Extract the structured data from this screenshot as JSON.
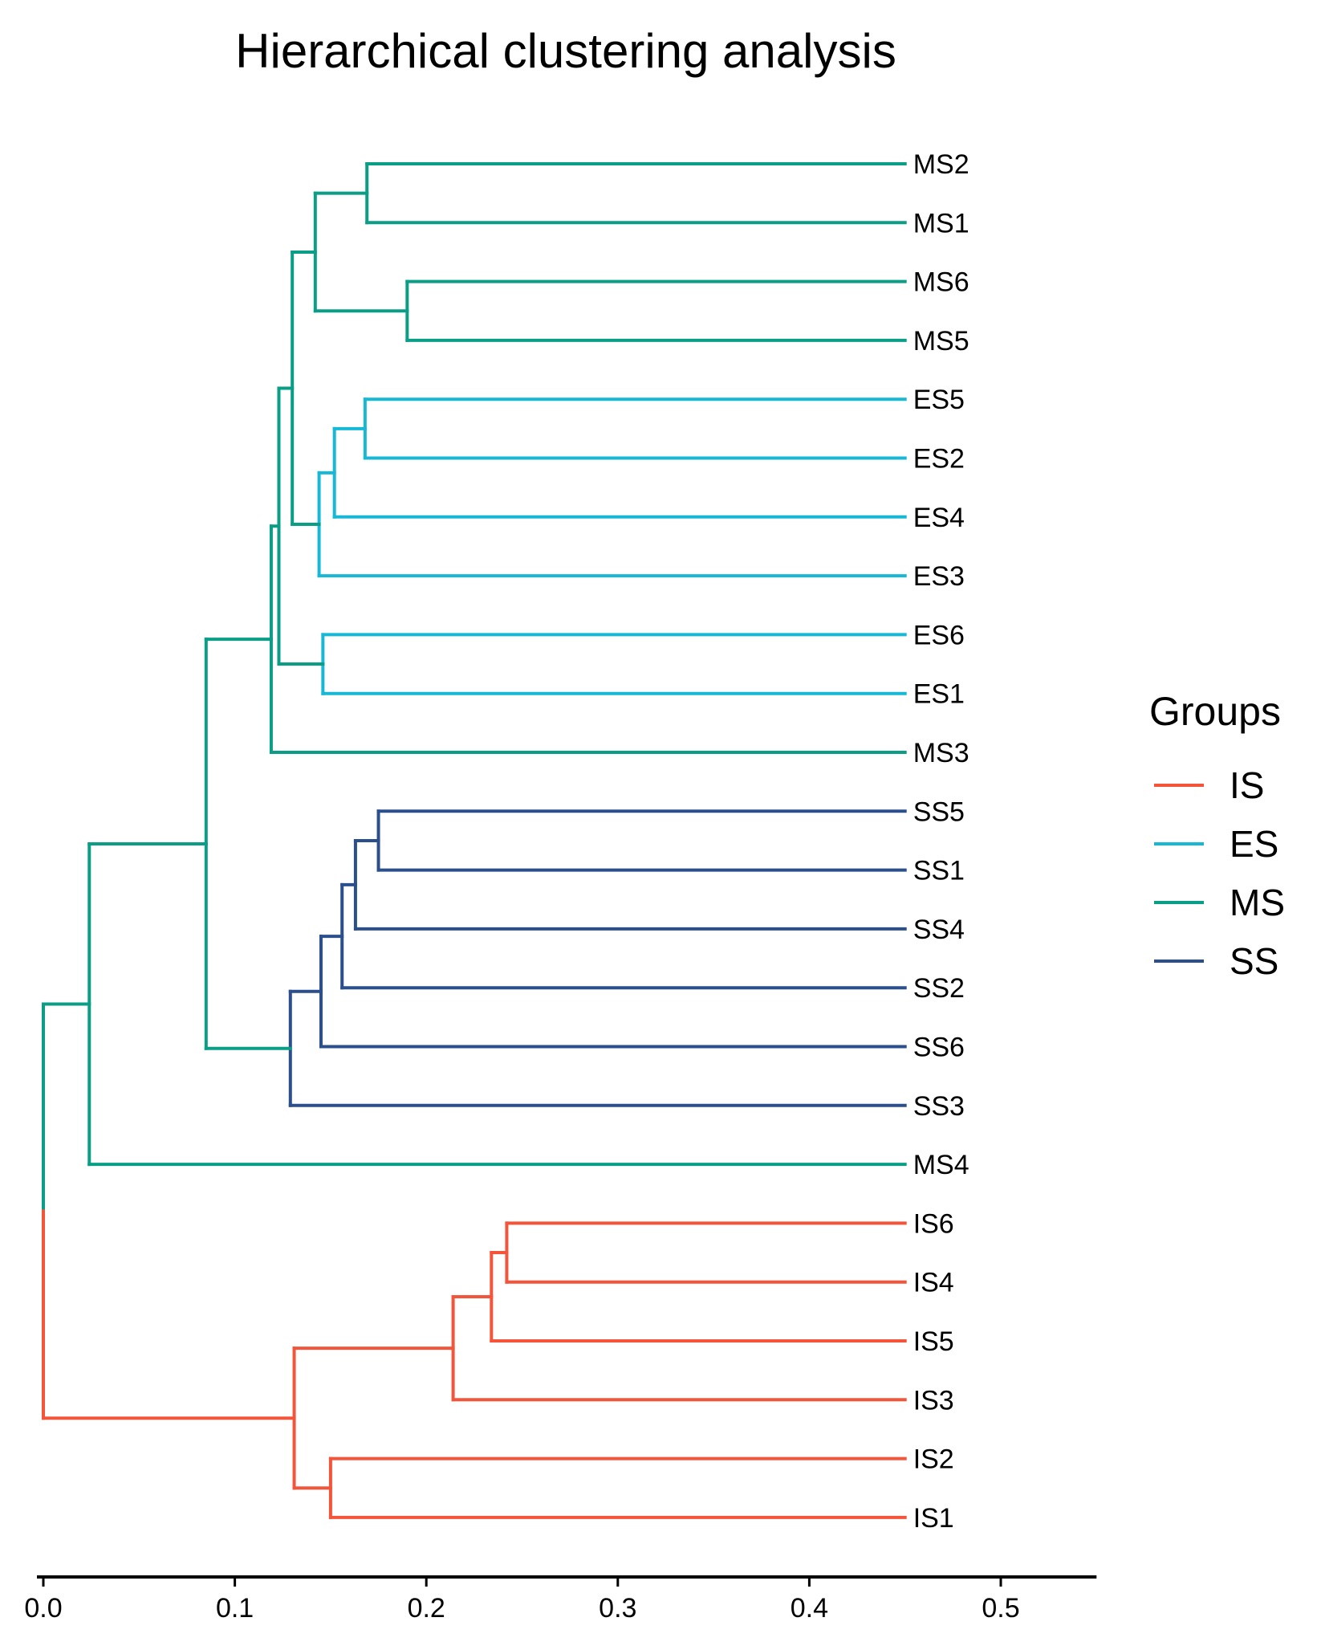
{
  "chart_data": {
    "type": "dendrogram",
    "title": "Hierarchical clustering analysis",
    "xlabel": "",
    "ylabel": "",
    "xlim": [
      0.0,
      0.55
    ],
    "x_ticks": [
      0.0,
      0.1,
      0.2,
      0.3,
      0.4,
      0.5
    ],
    "x_tick_labels": [
      "0.0",
      "0.1",
      "0.2",
      "0.3",
      "0.4",
      "0.5"
    ],
    "leaf_x": 0.45,
    "leaves": [
      {
        "name": "MS2",
        "group": "MS"
      },
      {
        "name": "MS1",
        "group": "MS"
      },
      {
        "name": "MS6",
        "group": "MS"
      },
      {
        "name": "MS5",
        "group": "MS"
      },
      {
        "name": "ES5",
        "group": "ES"
      },
      {
        "name": "ES2",
        "group": "ES"
      },
      {
        "name": "ES4",
        "group": "ES"
      },
      {
        "name": "ES3",
        "group": "ES"
      },
      {
        "name": "ES6",
        "group": "ES"
      },
      {
        "name": "ES1",
        "group": "ES"
      },
      {
        "name": "MS3",
        "group": "MS"
      },
      {
        "name": "SS5",
        "group": "SS"
      },
      {
        "name": "SS1",
        "group": "SS"
      },
      {
        "name": "SS4",
        "group": "SS"
      },
      {
        "name": "SS2",
        "group": "SS"
      },
      {
        "name": "SS6",
        "group": "SS"
      },
      {
        "name": "SS3",
        "group": "SS"
      },
      {
        "name": "MS4",
        "group": "MS"
      },
      {
        "name": "IS6",
        "group": "IS"
      },
      {
        "name": "IS4",
        "group": "IS"
      },
      {
        "name": "IS5",
        "group": "IS"
      },
      {
        "name": "IS3",
        "group": "IS"
      },
      {
        "name": "IS2",
        "group": "IS"
      },
      {
        "name": "IS1",
        "group": "IS"
      }
    ],
    "merges": [
      {
        "id": "m1",
        "children": [
          "MS2",
          "MS1"
        ],
        "height": 0.169,
        "group": "MS"
      },
      {
        "id": "m2",
        "children": [
          "MS6",
          "MS5"
        ],
        "height": 0.19,
        "group": "MS"
      },
      {
        "id": "m3",
        "children": [
          "m1",
          "m2"
        ],
        "height": 0.142,
        "group": "MS"
      },
      {
        "id": "e1",
        "children": [
          "ES5",
          "ES2"
        ],
        "height": 0.168,
        "group": "ES"
      },
      {
        "id": "e2",
        "children": [
          "e1",
          "ES4"
        ],
        "height": 0.152,
        "group": "ES"
      },
      {
        "id": "e3",
        "children": [
          "e2",
          "ES3"
        ],
        "height": 0.144,
        "group": "ES"
      },
      {
        "id": "m4",
        "children": [
          "m3",
          "e3"
        ],
        "height": 0.13,
        "group": "MS"
      },
      {
        "id": "e4",
        "children": [
          "ES6",
          "ES1"
        ],
        "height": 0.146,
        "group": "ES"
      },
      {
        "id": "m5",
        "children": [
          "m4",
          "e4"
        ],
        "height": 0.123,
        "group": "MS"
      },
      {
        "id": "m6",
        "children": [
          "m5",
          "MS3"
        ],
        "height": 0.119,
        "group": "MS"
      },
      {
        "id": "s1",
        "children": [
          "SS5",
          "SS1"
        ],
        "height": 0.175,
        "group": "SS"
      },
      {
        "id": "s2",
        "children": [
          "s1",
          "SS4"
        ],
        "height": 0.163,
        "group": "SS"
      },
      {
        "id": "s3",
        "children": [
          "s2",
          "SS2"
        ],
        "height": 0.156,
        "group": "SS"
      },
      {
        "id": "s4",
        "children": [
          "s3",
          "SS6"
        ],
        "height": 0.145,
        "group": "SS"
      },
      {
        "id": "s5",
        "children": [
          "s4",
          "SS3"
        ],
        "height": 0.129,
        "group": "SS"
      },
      {
        "id": "m7",
        "children": [
          "m6",
          "s5"
        ],
        "height": 0.085,
        "group": "MS"
      },
      {
        "id": "m8",
        "children": [
          "m7",
          "MS4"
        ],
        "height": 0.024,
        "group": "MS"
      },
      {
        "id": "i1",
        "children": [
          "IS6",
          "IS4"
        ],
        "height": 0.242,
        "group": "IS"
      },
      {
        "id": "i2",
        "children": [
          "i1",
          "IS5"
        ],
        "height": 0.234,
        "group": "IS"
      },
      {
        "id": "i3",
        "children": [
          "i2",
          "IS3"
        ],
        "height": 0.214,
        "group": "IS"
      },
      {
        "id": "i4",
        "children": [
          "IS2",
          "IS1"
        ],
        "height": 0.15,
        "group": "IS"
      },
      {
        "id": "i5",
        "children": [
          "i3",
          "i4"
        ],
        "height": 0.131,
        "group": "IS"
      },
      {
        "id": "root",
        "children": [
          "m8",
          "i5"
        ],
        "height": 0.0,
        "group": "root",
        "branch_groups": [
          "MS",
          "IS"
        ]
      }
    ],
    "legend": {
      "title": "Groups",
      "position": "right",
      "entries": [
        {
          "label": "IS",
          "color": "#F4553A"
        },
        {
          "label": "ES",
          "color": "#17B8D6"
        },
        {
          "label": "MS",
          "color": "#0A9E86"
        },
        {
          "label": "SS",
          "color": "#2B4F8C"
        }
      ]
    }
  }
}
